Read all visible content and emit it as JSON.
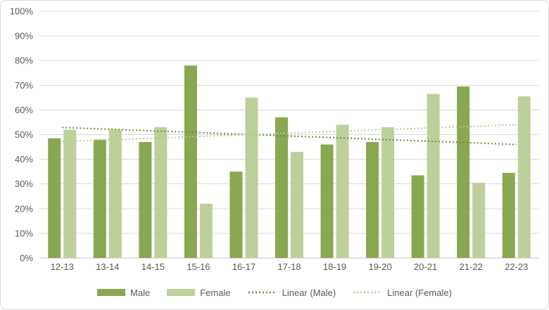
{
  "chart_data": {
    "type": "bar",
    "title": "",
    "categories": [
      "12-13",
      "13-14",
      "14-15",
      "15-16",
      "16-17",
      "17-18",
      "18-19",
      "19-20",
      "20-21",
      "21-22",
      "22-23"
    ],
    "series": [
      {
        "name": "Male",
        "color": "#8AA751",
        "values": [
          48.5,
          48,
          47,
          78,
          35,
          57,
          46,
          47,
          33.5,
          69.5,
          34.5
        ]
      },
      {
        "name": "Female",
        "color": "#BDD09B",
        "values": [
          52,
          52,
          53,
          22,
          65,
          43,
          54,
          53,
          66.5,
          30.5,
          65.5
        ]
      }
    ],
    "trendlines": [
      {
        "name": "Linear (Male)",
        "color": "#6E8B37",
        "start": 52.9,
        "end": 46
      },
      {
        "name": "Linear (Female)",
        "color": "#B6CD8E",
        "start": 47.2,
        "end": 54
      }
    ],
    "xlabel": "",
    "ylabel": "",
    "ylim": [
      0,
      100
    ],
    "y_tick_step": 10,
    "y_ticks": [
      "0%",
      "10%",
      "20%",
      "30%",
      "40%",
      "50%",
      "60%",
      "70%",
      "80%",
      "90%",
      "100%"
    ],
    "grid": true,
    "legend_position": "bottom",
    "legend": [
      "Male",
      "Female",
      "Linear (Male)",
      "Linear (Female)"
    ]
  },
  "colors": {
    "background": "#FFFFFF",
    "border": "#D9D9D9",
    "gridline": "#D9D9D9",
    "axis_line": "#C6C6C6",
    "text": "#595959"
  }
}
